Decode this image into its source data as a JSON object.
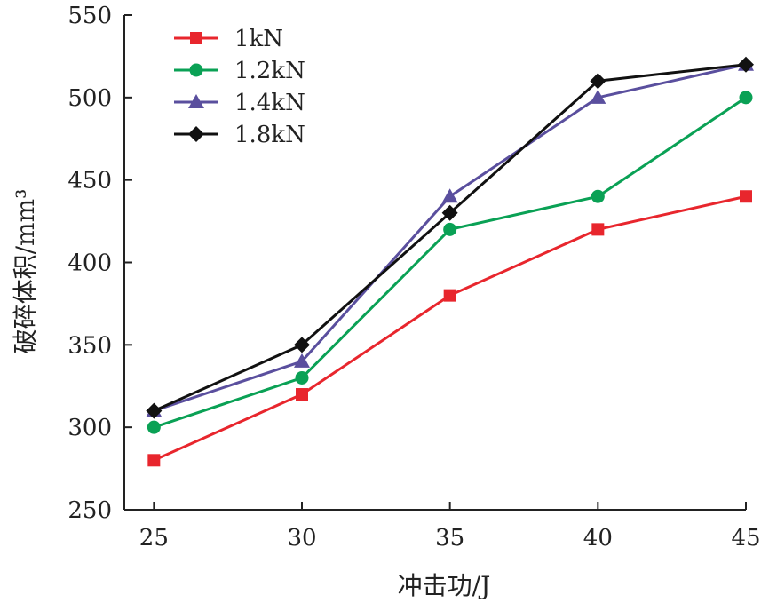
{
  "chart_data": {
    "type": "line",
    "title": "",
    "xlabel": "冲击功/J",
    "ylabel": "破碎体积/mm³",
    "x": [
      25,
      30,
      35,
      40,
      45
    ],
    "xlim": [
      24,
      45
    ],
    "ylim": [
      250,
      550
    ],
    "xticks": [
      25,
      30,
      35,
      40,
      45
    ],
    "yticks": [
      250,
      300,
      350,
      400,
      450,
      500,
      550
    ],
    "grid": false,
    "legend_position": "top-left",
    "series": [
      {
        "name": "1kN",
        "color": "#e8262d",
        "marker": "square",
        "values": [
          280,
          320,
          380,
          420,
          440
        ]
      },
      {
        "name": "1.2kN",
        "color": "#0aa155",
        "marker": "circle",
        "values": [
          300,
          330,
          420,
          440,
          500
        ]
      },
      {
        "name": "1.4kN",
        "color": "#5a4f9e",
        "marker": "triangle",
        "values": [
          310,
          340,
          440,
          500,
          520
        ]
      },
      {
        "name": "1.8kN",
        "color": "#111111",
        "marker": "diamond",
        "values": [
          310,
          350,
          430,
          510,
          520
        ]
      }
    ]
  }
}
